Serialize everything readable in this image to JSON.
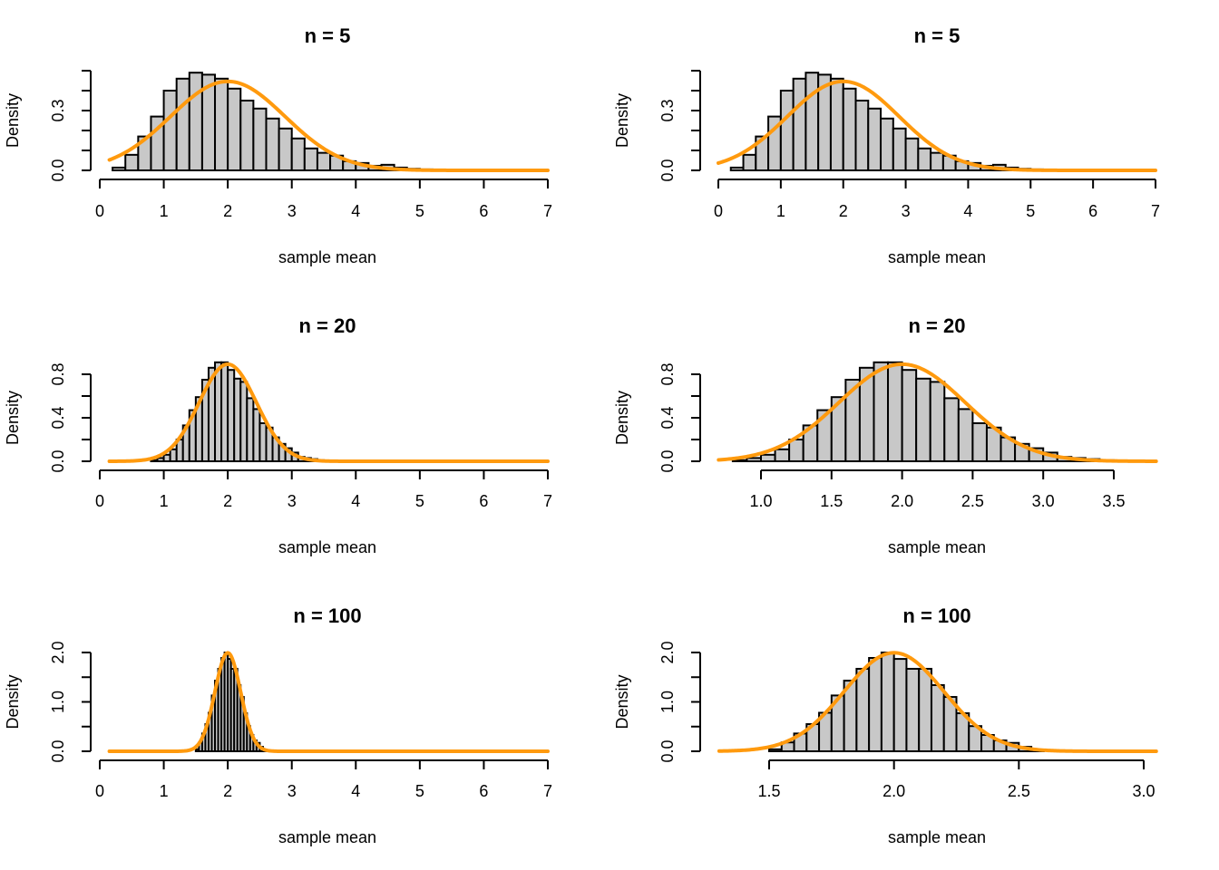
{
  "colors": {
    "bar_fill": "#c8c8c8",
    "bar_stroke": "#000000",
    "curve": "#ff9a0e"
  },
  "chart_data": [
    {
      "type": "bar",
      "panel": "top-left",
      "title": "n = 5",
      "xlabel": "sample mean",
      "ylabel": "Density",
      "xlim": [
        0,
        7
      ],
      "ylim": [
        0,
        0.5
      ],
      "xticks": [
        0,
        1,
        2,
        3,
        4,
        5,
        6,
        7
      ],
      "xtick_labels": [
        "0",
        "1",
        "2",
        "3",
        "4",
        "5",
        "6",
        "7"
      ],
      "yticks": [
        0,
        0.1,
        0.2,
        0.3,
        0.4,
        0.5
      ],
      "ytick_labels": [
        "0.0",
        "",
        "",
        "0.3",
        "",
        ""
      ],
      "bin_start": 0.0,
      "bin_width": 0.2,
      "densities": [
        0.0,
        0.014,
        0.078,
        0.17,
        0.27,
        0.4,
        0.46,
        0.49,
        0.48,
        0.46,
        0.41,
        0.35,
        0.31,
        0.26,
        0.21,
        0.16,
        0.11,
        0.088,
        0.074,
        0.046,
        0.037,
        0.023,
        0.028,
        0.014,
        0.008,
        0.005,
        0.003,
        0.002,
        0.001,
        0.001
      ],
      "normal_curve": {
        "mean": 2.0,
        "sd": 0.894,
        "from": 0.15,
        "to": 7.0
      },
      "grid": false
    },
    {
      "type": "bar",
      "panel": "top-right",
      "title": "n = 5",
      "xlabel": "sample mean",
      "ylabel": "Density",
      "xlim": [
        0,
        7
      ],
      "ylim": [
        0,
        0.5
      ],
      "xticks": [
        0,
        1,
        2,
        3,
        4,
        5,
        6,
        7
      ],
      "xtick_labels": [
        "0",
        "1",
        "2",
        "3",
        "4",
        "5",
        "6",
        "7"
      ],
      "yticks": [
        0,
        0.1,
        0.2,
        0.3,
        0.4,
        0.5
      ],
      "ytick_labels": [
        "0.0",
        "",
        "",
        "0.3",
        "",
        ""
      ],
      "bin_start": 0.0,
      "bin_width": 0.2,
      "densities": [
        0.0,
        0.014,
        0.078,
        0.17,
        0.27,
        0.4,
        0.46,
        0.49,
        0.48,
        0.46,
        0.41,
        0.35,
        0.31,
        0.26,
        0.21,
        0.16,
        0.11,
        0.088,
        0.074,
        0.046,
        0.037,
        0.023,
        0.028,
        0.014,
        0.008,
        0.005,
        0.003,
        0.002,
        0.001,
        0.001
      ],
      "normal_curve": {
        "mean": 2.0,
        "sd": 0.894,
        "from": 0.0,
        "to": 7.0
      },
      "grid": false
    },
    {
      "type": "bar",
      "panel": "middle-left",
      "title": "n = 20",
      "xlabel": "sample mean",
      "ylabel": "Density",
      "xlim": [
        0,
        7
      ],
      "ylim": [
        0,
        0.8
      ],
      "xticks": [
        0,
        1,
        2,
        3,
        4,
        5,
        6,
        7
      ],
      "xtick_labels": [
        "0",
        "1",
        "2",
        "3",
        "4",
        "5",
        "6",
        "7"
      ],
      "yticks": [
        0,
        0.2,
        0.4,
        0.6,
        0.8
      ],
      "ytick_labels": [
        "0.0",
        "",
        "0.4",
        "",
        "0.8"
      ],
      "bin_start": 0.8,
      "bin_width": 0.1,
      "densities": [
        0.01,
        0.03,
        0.06,
        0.11,
        0.2,
        0.33,
        0.47,
        0.59,
        0.75,
        0.86,
        0.91,
        0.91,
        0.84,
        0.76,
        0.73,
        0.58,
        0.48,
        0.35,
        0.31,
        0.22,
        0.16,
        0.12,
        0.08,
        0.04,
        0.03,
        0.02,
        0.01
      ],
      "normal_curve": {
        "mean": 2.0,
        "sd": 0.447,
        "from": 0.15,
        "to": 7.0
      },
      "grid": false
    },
    {
      "type": "bar",
      "panel": "middle-right",
      "title": "n = 20",
      "xlabel": "sample mean",
      "ylabel": "Density",
      "xlim": [
        0.7,
        3.8
      ],
      "ylim": [
        0,
        0.8
      ],
      "xticks": [
        1.0,
        1.5,
        2.0,
        2.5,
        3.0,
        3.5
      ],
      "xtick_labels": [
        "1.0",
        "1.5",
        "2.0",
        "2.5",
        "3.0",
        "3.5"
      ],
      "yticks": [
        0,
        0.2,
        0.4,
        0.6,
        0.8
      ],
      "ytick_labels": [
        "0.0",
        "",
        "0.4",
        "",
        "0.8"
      ],
      "bin_start": 0.8,
      "bin_width": 0.1,
      "densities": [
        0.01,
        0.03,
        0.06,
        0.11,
        0.2,
        0.33,
        0.47,
        0.59,
        0.75,
        0.86,
        0.91,
        0.91,
        0.84,
        0.76,
        0.73,
        0.58,
        0.48,
        0.35,
        0.31,
        0.22,
        0.16,
        0.12,
        0.08,
        0.04,
        0.03,
        0.02,
        0.01
      ],
      "normal_curve": {
        "mean": 2.0,
        "sd": 0.447,
        "from": 0.7,
        "to": 3.8
      },
      "grid": false
    },
    {
      "type": "bar",
      "panel": "bottom-left",
      "title": "n = 100",
      "xlabel": "sample mean",
      "ylabel": "Density",
      "xlim": [
        0,
        7
      ],
      "ylim": [
        0,
        2.0
      ],
      "xticks": [
        0,
        1,
        2,
        3,
        4,
        5,
        6,
        7
      ],
      "xtick_labels": [
        "0",
        "1",
        "2",
        "3",
        "4",
        "5",
        "6",
        "7"
      ],
      "yticks": [
        0,
        0.5,
        1.0,
        1.5,
        2.0
      ],
      "ytick_labels": [
        "0.0",
        "",
        "1.0",
        "",
        "2.0"
      ],
      "bin_start": 1.5,
      "bin_width": 0.05,
      "densities": [
        0.04,
        0.18,
        0.36,
        0.55,
        0.78,
        1.13,
        1.43,
        1.67,
        1.89,
        2.0,
        1.87,
        1.67,
        1.67,
        1.34,
        1.1,
        0.77,
        0.51,
        0.33,
        0.22,
        0.17,
        0.09,
        0.03
      ],
      "normal_curve": {
        "mean": 2.0,
        "sd": 0.2,
        "from": 0.15,
        "to": 7.0
      },
      "grid": false
    },
    {
      "type": "bar",
      "panel": "bottom-right",
      "title": "n = 100",
      "xlabel": "sample mean",
      "ylabel": "Density",
      "xlim": [
        1.3,
        3.05
      ],
      "ylim": [
        0,
        2.0
      ],
      "xticks": [
        1.5,
        2.0,
        2.5,
        3.0
      ],
      "xtick_labels": [
        "1.5",
        "2.0",
        "2.5",
        "3.0"
      ],
      "yticks": [
        0,
        0.5,
        1.0,
        1.5,
        2.0
      ],
      "ytick_labels": [
        "0.0",
        "",
        "1.0",
        "",
        "2.0"
      ],
      "bin_start": 1.5,
      "bin_width": 0.05,
      "densities": [
        0.04,
        0.18,
        0.36,
        0.55,
        0.78,
        1.13,
        1.43,
        1.67,
        1.89,
        2.0,
        1.87,
        1.67,
        1.67,
        1.34,
        1.1,
        0.77,
        0.51,
        0.33,
        0.22,
        0.17,
        0.09,
        0.03
      ],
      "normal_curve": {
        "mean": 2.0,
        "sd": 0.2,
        "from": 1.3,
        "to": 3.05
      },
      "grid": false
    }
  ]
}
